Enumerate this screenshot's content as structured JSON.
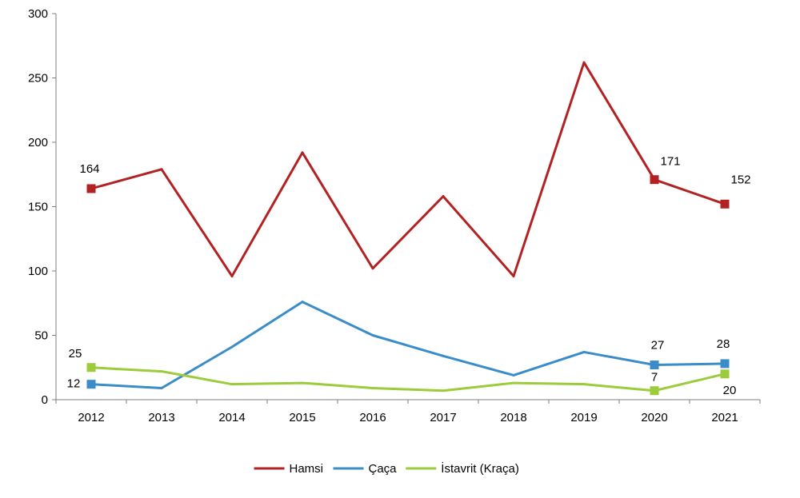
{
  "chart_data": {
    "type": "line",
    "title": "",
    "xlabel": "",
    "ylabel": "",
    "categories": [
      "2012",
      "2013",
      "2014",
      "2015",
      "2016",
      "2017",
      "2018",
      "2019",
      "2020",
      "2021"
    ],
    "ylim": [
      0,
      300
    ],
    "yticks": [
      "0",
      "50",
      "100",
      "150",
      "200",
      "250",
      "300"
    ],
    "grid": false,
    "legend_position": "bottom",
    "series": [
      {
        "name": "Hamsi",
        "color": "#B22222",
        "values": [
          164,
          179,
          96,
          192,
          102,
          158,
          96,
          262,
          171,
          152
        ],
        "labels": [
          {
            "index": 0,
            "text": "164"
          },
          {
            "index": 8,
            "text": "171"
          },
          {
            "index": 9,
            "text": "152"
          }
        ]
      },
      {
        "name": "Çaça",
        "color": "#3A8DC8",
        "values": [
          12,
          9,
          41,
          76,
          50,
          34,
          19,
          37,
          27,
          28
        ],
        "labels": [
          {
            "index": 0,
            "text": "12"
          },
          {
            "index": 8,
            "text": "27"
          },
          {
            "index": 9,
            "text": "28"
          }
        ]
      },
      {
        "name": "İstavrit (Kraça)",
        "color": "#9CCB3B",
        "values": [
          25,
          22,
          12,
          13,
          9,
          7,
          13,
          12,
          7,
          20
        ],
        "labels": [
          {
            "index": 0,
            "text": "25"
          },
          {
            "index": 8,
            "text": "7"
          },
          {
            "index": 9,
            "text": "20"
          }
        ]
      }
    ]
  }
}
